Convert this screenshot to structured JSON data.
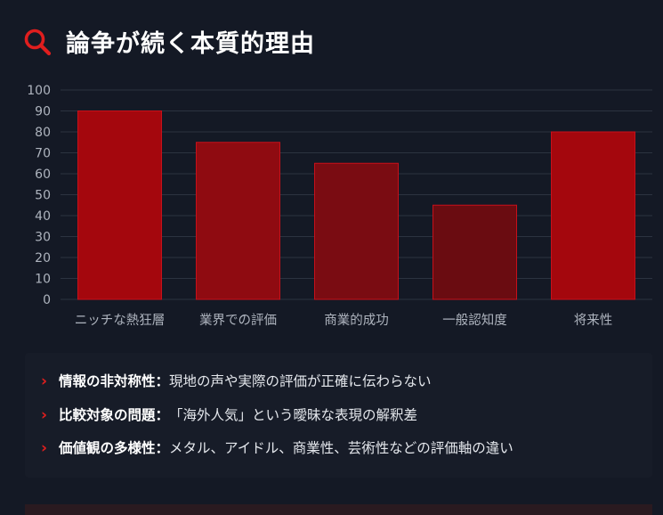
{
  "header": {
    "title": "論争が続く本質的理由",
    "icon": "search-icon"
  },
  "chart_data": {
    "type": "bar",
    "categories": [
      "ニッチな熱狂層",
      "業界での評価",
      "商業的成功",
      "一般認知度",
      "将来性"
    ],
    "values": [
      90,
      75,
      65,
      45,
      80
    ],
    "ylim": [
      0,
      100
    ],
    "yticks": [
      0,
      10,
      20,
      30,
      40,
      50,
      60,
      70,
      80,
      90,
      100
    ],
    "grid": true,
    "legend": "none",
    "colors": {
      "bar_fill": [
        "#a4070d",
        "#8f0b11",
        "#7a0c12",
        "#6a0c11",
        "#a4070d"
      ],
      "bar_stroke": "#c7101a",
      "grid": "#2c3340",
      "tick_text": "#aeb4be"
    }
  },
  "points": [
    {
      "heading": "情報の非対称性",
      "sep": "：",
      "body": "現地の声や実際の評価が正確に伝わらない"
    },
    {
      "heading": "比較対象の問題",
      "sep": "：",
      "body": "「海外人気」という曖昧な表現の解釈差"
    },
    {
      "heading": "価値観の多様性",
      "sep": "：",
      "body": "メタル、アイドル、商業性、芸術性などの評価軸の違い"
    }
  ]
}
